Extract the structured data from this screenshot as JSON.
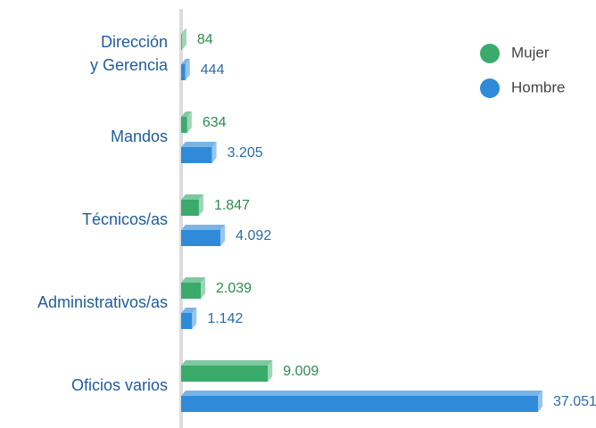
{
  "chart_data": {
    "type": "bar",
    "categories": [
      "Dirección\ny Gerencia",
      "Mandos",
      "Técnicos/as",
      "Administrativos/as",
      "Oficios varios"
    ],
    "series": [
      {
        "name": "Mujer",
        "color": "#3aab6b",
        "values": [
          84,
          634,
          1847,
          2039,
          9009
        ],
        "value_labels": [
          "84",
          "634",
          "1.847",
          "2.039",
          "9.009"
        ]
      },
      {
        "name": "Hombre",
        "color": "#2f8bd9",
        "values": [
          444,
          3205,
          4092,
          1142,
          37051
        ],
        "value_labels": [
          "444",
          "3.205",
          "4.092",
          "1.142",
          "37.051"
        ]
      }
    ],
    "legend": "upper right"
  }
}
